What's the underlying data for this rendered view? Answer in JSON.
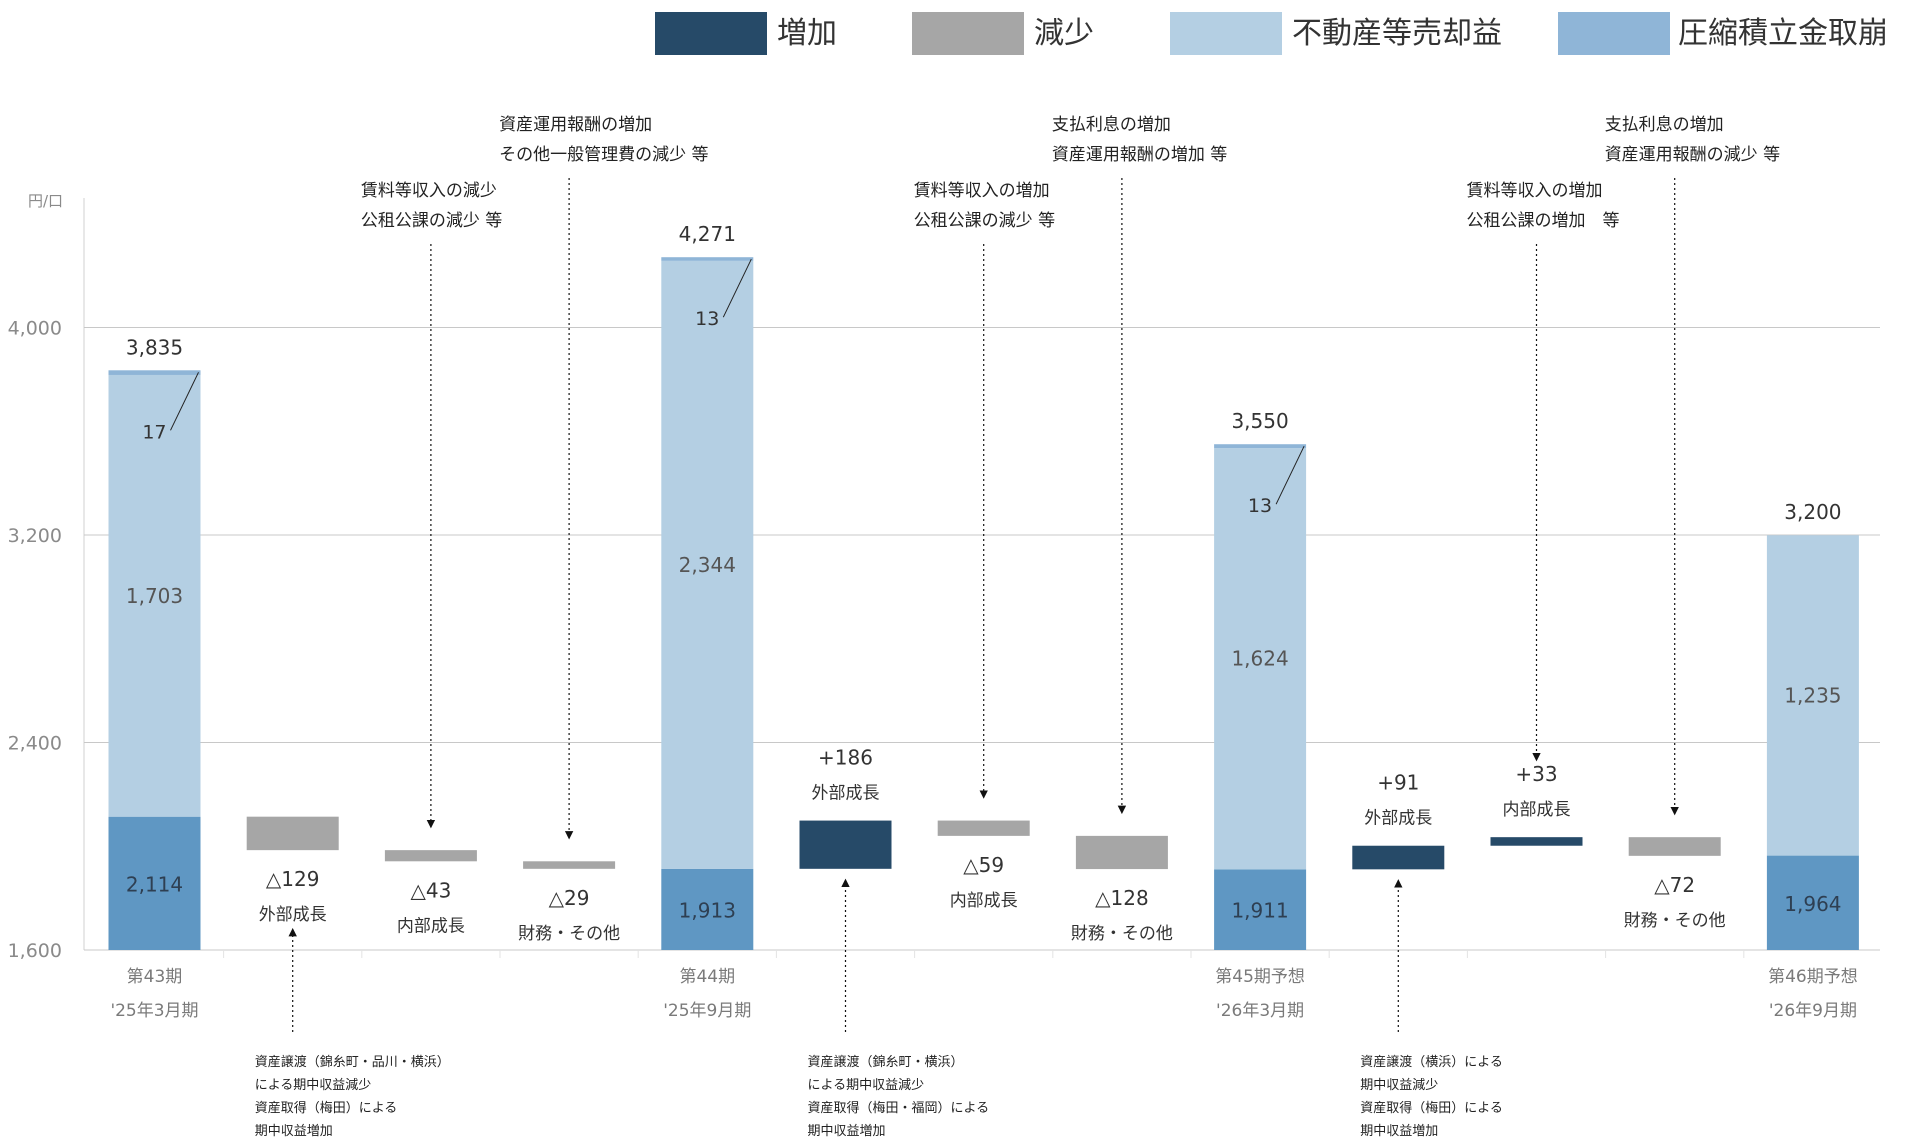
{
  "colors": {
    "increase": "#264a68",
    "decrease": "#a6a6a6",
    "gain": "#b4cfe3",
    "reserve": "#5f97c3",
    "reserve_legend": "#8fb5d7"
  },
  "legend": [
    "増加",
    "減少",
    "不動産等売却益",
    "圧縮積立金取崩"
  ],
  "chart_data": {
    "type": "waterfall",
    "unit": "円/口",
    "ylim": [
      1600,
      4400
    ],
    "yticks": [
      "1,600",
      "2,400",
      "3,200",
      "4,000"
    ],
    "grid": true,
    "legend_position": "top-right",
    "columns": [
      {
        "kind": "total",
        "top_label": "3,835",
        "total": 3835,
        "reserve": 2114,
        "reserve_label": "2,114",
        "gain": 1703,
        "gain_label": "1,703",
        "other": 17,
        "other_label": "17",
        "cat1": "第43期",
        "cat2": "'25年3月期"
      },
      {
        "kind": "decrease",
        "from": 2114,
        "to": 1985,
        "value_label": "△129",
        "sub_label": "外部成長"
      },
      {
        "kind": "decrease",
        "from": 1985,
        "to": 1942,
        "value_label": "△43",
        "sub_label": "内部成長"
      },
      {
        "kind": "decrease",
        "from": 1942,
        "to": 1913,
        "value_label": "△29",
        "sub_label": "財務・その他"
      },
      {
        "kind": "total",
        "top_label": "4,271",
        "total": 4271,
        "reserve": 1913,
        "reserve_label": "1,913",
        "gain": 2344,
        "gain_label": "2,344",
        "other": 13,
        "other_label": "13",
        "cat1": "第44期",
        "cat2": "'25年9月期"
      },
      {
        "kind": "increase",
        "from": 1913,
        "to": 2099,
        "value_label": "+186",
        "sub_label": "外部成長"
      },
      {
        "kind": "decrease",
        "from": 2099,
        "to": 2040,
        "value_label": "△59",
        "sub_label": "内部成長"
      },
      {
        "kind": "decrease",
        "from": 2040,
        "to": 1912,
        "value_label": "△128",
        "sub_label": "財務・その他"
      },
      {
        "kind": "total",
        "top_label": "3,550",
        "total": 3550,
        "reserve": 1911,
        "reserve_label": "1,911",
        "gain": 1624,
        "gain_label": "1,624",
        "other": 13,
        "other_label": "13",
        "cat1": "第45期予想",
        "cat2": "'26年3月期"
      },
      {
        "kind": "increase",
        "from": 1911,
        "to": 2002,
        "value_label": "+91",
        "sub_label": "外部成長"
      },
      {
        "kind": "increase",
        "from": 2002,
        "to": 2035,
        "value_label": "+33",
        "sub_label": "内部成長"
      },
      {
        "kind": "decrease",
        "from": 2035,
        "to": 1963,
        "value_label": "△72",
        "sub_label": "財務・その他"
      },
      {
        "kind": "total",
        "top_label": "3,200",
        "total": 3200,
        "reserve": 1964,
        "reserve_label": "1,964",
        "gain": 1235,
        "gain_label": "1,235",
        "other": 0,
        "other_label": "",
        "cat1": "第46期予想",
        "cat2": "'26年9月期"
      }
    ]
  },
  "notes": [
    {
      "col": 2,
      "lines": [
        "賃料等収入の減少",
        "公租公課の減少 等"
      ]
    },
    {
      "col": 3,
      "lines": [
        "資産運用報酬の増加",
        "その他一般管理費の減少 等"
      ]
    },
    {
      "col": 6,
      "lines": [
        "賃料等収入の増加",
        "公租公課の減少 等"
      ]
    },
    {
      "col": 7,
      "lines": [
        "支払利息の増加",
        "資産運用報酬の増加 等"
      ]
    },
    {
      "col": 10,
      "lines": [
        "賃料等収入の増加",
        "公租公課の増加　等"
      ]
    },
    {
      "col": 11,
      "lines": [
        "支払利息の増加",
        "資産運用報酬の減少 等"
      ]
    }
  ],
  "footnotes": [
    {
      "col": 1,
      "lines": [
        "資産譲渡（錦糸町・品川・横浜）",
        "による期中収益減少",
        "資産取得（梅田）による",
        "期中収益増加"
      ]
    },
    {
      "col": 5,
      "lines": [
        "資産譲渡（錦糸町・横浜）",
        "による期中収益減少",
        "資産取得（梅田・福岡）による",
        "期中収益増加"
      ]
    },
    {
      "col": 9,
      "lines": [
        "資産譲渡（横浜）による",
        "期中収益減少",
        "資産取得（梅田）による",
        "期中収益増加"
      ]
    }
  ]
}
